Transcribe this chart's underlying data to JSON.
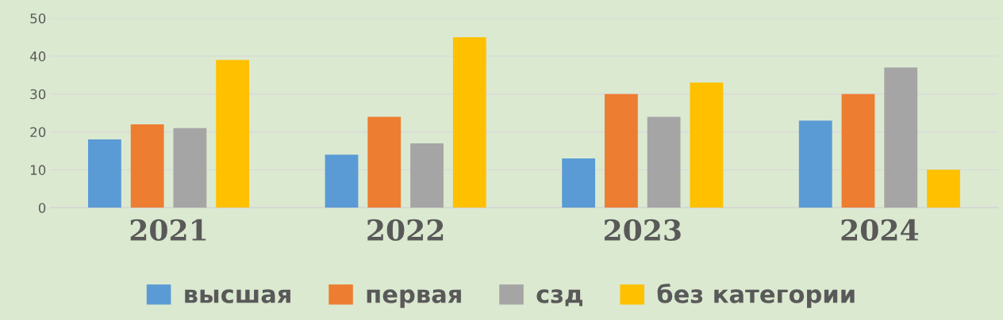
{
  "chart_data": {
    "type": "bar",
    "categories": [
      "2021",
      "2022",
      "2023",
      "2024"
    ],
    "series": [
      {
        "name": "высшая",
        "color": "#5b9bd5",
        "values": [
          18,
          14,
          13,
          23
        ]
      },
      {
        "name": "первая",
        "color": "#ed7d31",
        "values": [
          22,
          24,
          30,
          30
        ]
      },
      {
        "name": "сзд",
        "color": "#a5a5a5",
        "values": [
          21,
          17,
          24,
          37
        ]
      },
      {
        "name": "без категории",
        "color": "#ffc000",
        "values": [
          39,
          45,
          33,
          10
        ]
      }
    ],
    "ylim": [
      0,
      50
    ],
    "yticks": [
      0,
      10,
      20,
      30,
      40,
      50
    ],
    "grid": "y",
    "legend": "bottom"
  }
}
